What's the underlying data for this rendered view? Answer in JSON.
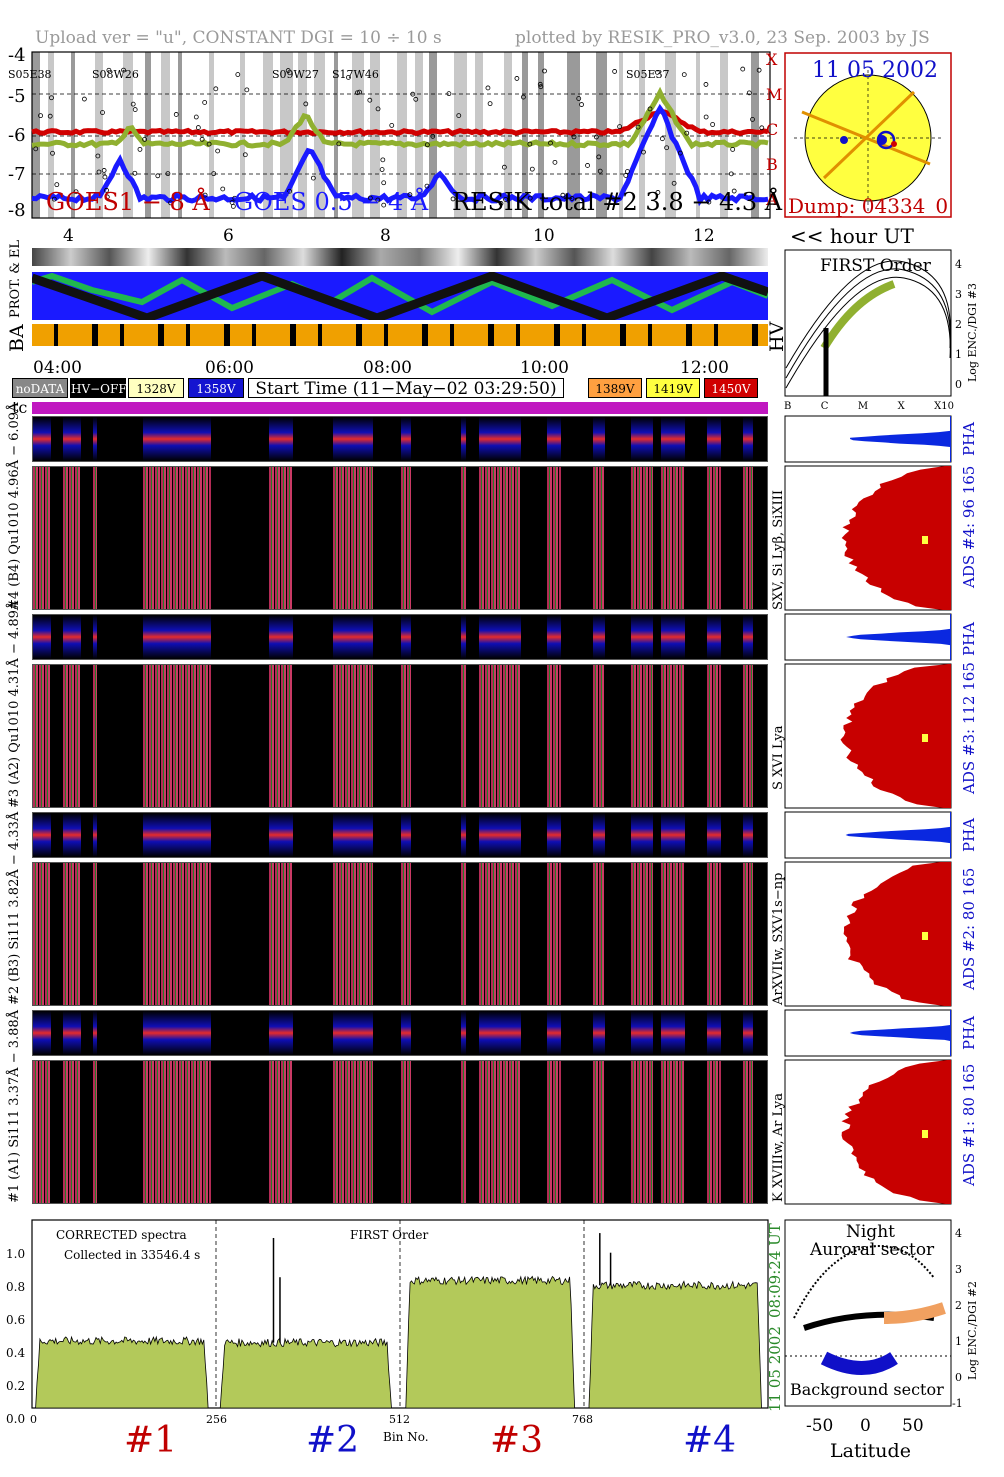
{
  "header": {
    "left": "Upload ver = \"u\", CONSTANT  DGI =  10 ÷  10 s",
    "right": "plotted by RESIK_PRO_v3.0, 23 Sep. 2003 by JS"
  },
  "goes_panel": {
    "y_ticks": [
      "-4",
      "-5",
      "-6",
      "-7",
      "-8"
    ],
    "class_letters": [
      "X",
      "M",
      "C",
      "B",
      "A"
    ],
    "x_ticks": [
      "4",
      "6",
      "8",
      "10",
      "12"
    ],
    "regions": [
      "S05E38",
      "S08W26",
      "S09W27",
      "S17W46",
      "S05E37"
    ],
    "legend_goes1": "GOES1 − 8 Å",
    "legend_goes05": "GOES 0.5 − 4 Å",
    "legend_resik": "RESIK total #2  3.8 − 4.3 Å",
    "hour_label": "<< hour UT"
  },
  "sun_panel": {
    "date": "11 05 2002",
    "dump": "Dump: 04334_0"
  },
  "orbit_panel": {
    "label_1": "PROT. & EL",
    "label_2": "BA",
    "hv": "HV"
  },
  "time_axis": {
    "ticks": [
      "04:00",
      "06:00",
      "08:00",
      "10:00",
      "12:00"
    ]
  },
  "legend": {
    "nodata": "noDATA",
    "hvoff": "HV−OFF",
    "v1328": "1328V",
    "v1358": "1358V",
    "start_time": "Start Time (11−May−02 03:29:50)",
    "v1389": "1389V",
    "v1419": "1419V",
    "v1450": "1450V",
    "tc": "tc"
  },
  "first_order_panel": {
    "title": "FIRST Order",
    "ylabel": "Log ENC./DGI #3",
    "y_ticks": [
      "4",
      "3",
      "2",
      "1",
      "0"
    ],
    "x_ticks": [
      "B",
      "C",
      "M",
      "X",
      "X10"
    ]
  },
  "spectrogram_labels": {
    "ch4_pha": "#4 (B4) Qu1010 4.96Å − 6.09Å",
    "ch3_pha": "#3 (A2) Qu1010 4.31Å − 4.89Å",
    "ch2_pha": "#2 (B3) Si111 3.82Å − 4.33Å",
    "ch1_pha": "#1 (A1) Si111 3.37Å − 3.88Å"
  },
  "right_labels": {
    "ads4": "ADS #4:  96 165",
    "ads3": "ADS #3:  112 165",
    "ads2": "ADS #2:  80 165",
    "ads1": "ADS #1:  80 165",
    "pha": "PHA",
    "line4": "SXV, Si Lyβ, SiXIII",
    "line3": "S XVI Lya",
    "line2": "ArXVIIw, SXV1s−np",
    "line1": "K XVIIIw, Ar Lya"
  },
  "spectrum_panel": {
    "title_1": "CORRECTED spectra",
    "title_2": "Collected in 33546.4 s",
    "title_3": "FIRST Order",
    "y_ticks": [
      "1.0",
      "0.8",
      "0.6",
      "0.4",
      "0.2",
      "0.0"
    ],
    "x_ticks": [
      "0",
      "256",
      "512",
      "768"
    ],
    "xlabel": "Bin No.",
    "time_label": "08:09:24 UT",
    "date_label": "11 05 2002",
    "channels": [
      "#1",
      "#2",
      "#3",
      "#4"
    ]
  },
  "latitude_panel": {
    "title_1": "Night",
    "title_2": "Auroral sector",
    "bottom_label": "Background sector",
    "xlabel": "Latitude",
    "ylabel": "Log ENC./DGI #2",
    "x_ticks": [
      "-50",
      "0",
      "50"
    ],
    "y_ticks": [
      "4",
      "3",
      "2",
      "1",
      "0",
      "-1"
    ]
  },
  "chart_data": {
    "type": "bar",
    "xlabel": "Bin No.",
    "ylim": [
      0,
      1.15
    ],
    "xlim": [
      0,
      1024
    ],
    "segments": [
      {
        "name": "#1",
        "x_range": [
          5,
          245
        ],
        "level": 0.41
      },
      {
        "name": "#2",
        "x_range": [
          262,
          500
        ],
        "level": 0.4,
        "peaks": [
          {
            "x": 336,
            "y": 1.04
          },
          {
            "x": 345,
            "y": 0.8
          }
        ]
      },
      {
        "name": "#3",
        "x_range": [
          520,
          755
        ],
        "level": 0.78
      },
      {
        "name": "#4",
        "x_range": [
          775,
          1015
        ],
        "level": 0.75,
        "peaks": [
          {
            "x": 790,
            "y": 1.07
          },
          {
            "x": 805,
            "y": 0.95
          }
        ]
      }
    ]
  },
  "colors": {
    "goes_long": "#d00000",
    "goes_short": "#1a1aff",
    "resik": "#000000",
    "spectrum_fill": "#b3c95a",
    "ads_fill": "#c80000",
    "pha_fill": "#0a28e0",
    "legend_1328": "#ffffc0",
    "legend_1358": "#1414d0",
    "legend_1389": "#ffa040",
    "legend_1419": "#ffff40",
    "legend_1450": "#d00000",
    "tc_bar": "#c018c0"
  }
}
